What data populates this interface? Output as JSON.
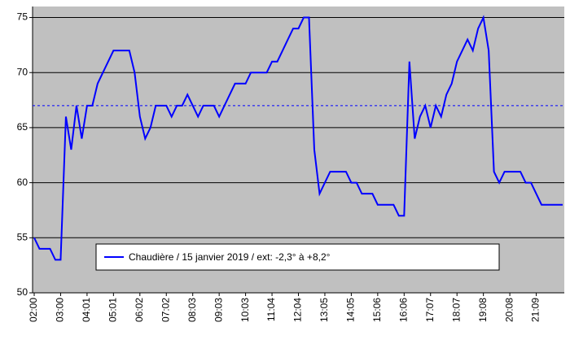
{
  "chart_data": {
    "type": "line",
    "categories": [
      "02:00",
      null,
      null,
      null,
      null,
      "03:00",
      null,
      null,
      null,
      null,
      "04:01",
      null,
      null,
      null,
      null,
      "05:01",
      null,
      null,
      null,
      null,
      "06:02",
      null,
      null,
      null,
      null,
      "07:02",
      null,
      null,
      null,
      null,
      "08:03",
      null,
      null,
      null,
      null,
      "09:03",
      null,
      null,
      null,
      null,
      "10:03",
      null,
      null,
      null,
      null,
      "11:04",
      null,
      null,
      null,
      null,
      "12:04",
      null,
      null,
      null,
      null,
      "13:05",
      null,
      null,
      null,
      null,
      "14:05",
      null,
      null,
      null,
      null,
      "15:06",
      null,
      null,
      null,
      null,
      "16:06",
      null,
      null,
      null,
      null,
      "17:07",
      null,
      null,
      null,
      null,
      "18:07",
      null,
      null,
      null,
      null,
      "19:08",
      null,
      null,
      null,
      null,
      "20:08",
      null,
      null,
      null,
      null,
      "21:09",
      null,
      null,
      null,
      null,
      null
    ],
    "series": [
      {
        "name": "Chaudière / 15 janvier 2019 / ext: -2,3° à +8,2°",
        "color": "#0000ff",
        "values": [
          55,
          54,
          54,
          54,
          53,
          53,
          66,
          63,
          67,
          64,
          67,
          67,
          69,
          70,
          71,
          72,
          72,
          72,
          72,
          70,
          66,
          64,
          65,
          67,
          67,
          67,
          66,
          67,
          67,
          68,
          67,
          66,
          67,
          67,
          67,
          66,
          67,
          68,
          69,
          69,
          69,
          70,
          70,
          70,
          70,
          71,
          71,
          72,
          73,
          74,
          74,
          75,
          75,
          63,
          59,
          60,
          61,
          61,
          61,
          61,
          60,
          60,
          59,
          59,
          59,
          58,
          58,
          58,
          58,
          57,
          57,
          71,
          64,
          66,
          67,
          65,
          67,
          66,
          68,
          69,
          71,
          72,
          73,
          72,
          74,
          75,
          72,
          61,
          60,
          61,
          61,
          61,
          61,
          60,
          60,
          59,
          58,
          58,
          58,
          58,
          58
        ]
      }
    ],
    "reference_line": {
      "value": 67,
      "color": "#0000ff"
    },
    "ylim": [
      50,
      76
    ],
    "yticks": [
      50,
      55,
      60,
      65,
      70,
      75
    ],
    "grid": true,
    "legend": "bottom",
    "background": "#c0c0c0"
  }
}
